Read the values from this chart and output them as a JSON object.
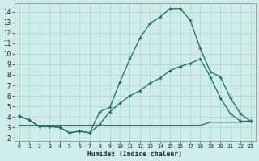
{
  "bg_color": "#cdecea",
  "grid_color": "#b0d8d4",
  "line_color": "#1a6e64",
  "xlabel": "Humidex (Indice chaleur)",
  "xlim": [
    -0.5,
    23.5
  ],
  "ylim": [
    1.7,
    14.8
  ],
  "xticks": [
    0,
    1,
    2,
    3,
    4,
    5,
    6,
    7,
    8,
    9,
    10,
    11,
    12,
    13,
    14,
    15,
    16,
    17,
    18,
    19,
    20,
    21,
    22,
    23
  ],
  "yticks": [
    2,
    3,
    4,
    5,
    6,
    7,
    8,
    9,
    10,
    11,
    12,
    13,
    14
  ],
  "line1_x": [
    0,
    1,
    2,
    3,
    4,
    5,
    6,
    7,
    8,
    9,
    10,
    11,
    12,
    13,
    14,
    15,
    16,
    17,
    18,
    19,
    20,
    21,
    22,
    23
  ],
  "line1_y": [
    4.1,
    3.7,
    3.1,
    3.1,
    3.0,
    2.5,
    2.65,
    2.5,
    4.5,
    4.9,
    7.3,
    9.5,
    11.5,
    12.9,
    13.5,
    14.3,
    14.3,
    13.2,
    10.5,
    8.3,
    7.8,
    5.8,
    4.3,
    3.6
  ],
  "line2_x": [
    0,
    1,
    2,
    3,
    4,
    5,
    6,
    7,
    8,
    9,
    10,
    11,
    12,
    13,
    14,
    15,
    16,
    17,
    18,
    19,
    20,
    21,
    22,
    23
  ],
  "line2_y": [
    4.1,
    3.7,
    3.1,
    3.1,
    3.0,
    2.5,
    2.65,
    2.5,
    3.3,
    4.5,
    5.3,
    6.0,
    6.5,
    7.2,
    7.7,
    8.4,
    8.8,
    9.1,
    9.5,
    7.8,
    5.8,
    4.3,
    3.6,
    3.6
  ],
  "line3_x": [
    0,
    1,
    2,
    3,
    4,
    5,
    6,
    7,
    8,
    9,
    10,
    11,
    12,
    13,
    14,
    15,
    16,
    17,
    18,
    19,
    20,
    21,
    22,
    23
  ],
  "line3_y": [
    3.2,
    3.2,
    3.2,
    3.2,
    3.2,
    3.2,
    3.2,
    3.2,
    3.2,
    3.2,
    3.2,
    3.2,
    3.2,
    3.2,
    3.2,
    3.2,
    3.2,
    3.2,
    3.2,
    3.5,
    3.5,
    3.5,
    3.5,
    3.6
  ]
}
